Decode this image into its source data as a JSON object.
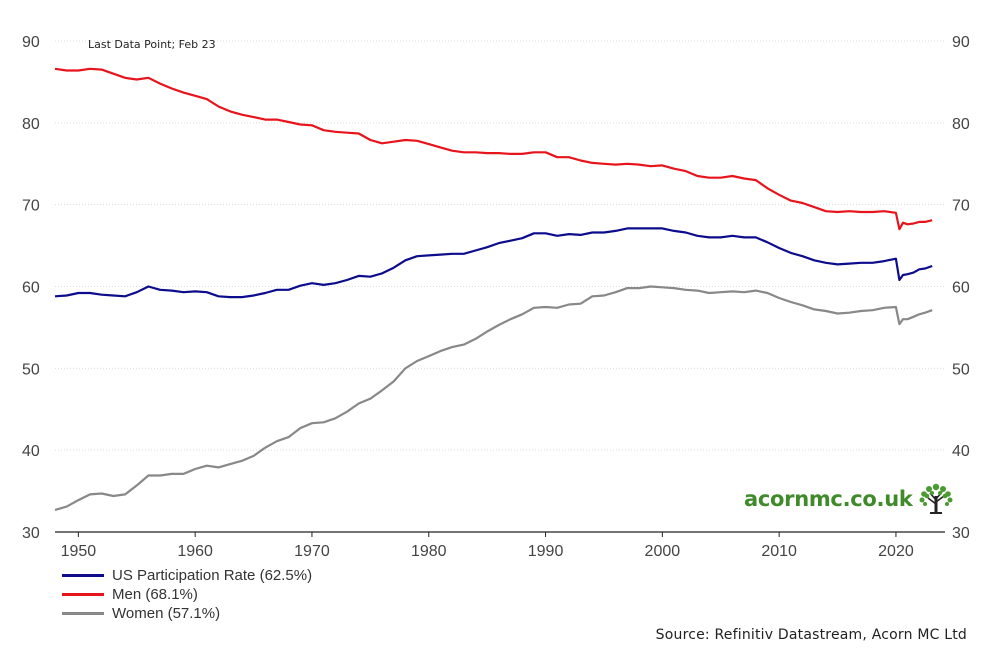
{
  "chart_data": {
    "type": "line",
    "title": "",
    "note": "Last Data Point; Feb 23",
    "xlabel": "",
    "ylabel": "",
    "xlim": [
      1948,
      2024.2
    ],
    "ylim": [
      30,
      90
    ],
    "yticks": [
      30,
      40,
      50,
      60,
      70,
      80,
      90
    ],
    "xticks": [
      1950,
      1960,
      1970,
      1980,
      1990,
      2000,
      2010,
      2020
    ],
    "grid": true,
    "legend_position": "bottom-left",
    "source": "Source: Refinitiv Datastream, Acorn MC Ltd",
    "series": [
      {
        "name": "US Participation Rate (62.5%)",
        "color": "#0c0c8c",
        "x": [
          1948,
          1949,
          1950,
          1951,
          1952,
          1953,
          1954,
          1955,
          1956,
          1957,
          1958,
          1959,
          1960,
          1961,
          1962,
          1963,
          1964,
          1965,
          1966,
          1967,
          1968,
          1969,
          1970,
          1971,
          1972,
          1973,
          1974,
          1975,
          1976,
          1977,
          1978,
          1979,
          1980,
          1981,
          1982,
          1983,
          1984,
          1985,
          1986,
          1987,
          1988,
          1989,
          1990,
          1991,
          1992,
          1993,
          1994,
          1995,
          1996,
          1997,
          1998,
          1999,
          2000,
          2001,
          2002,
          2003,
          2004,
          2005,
          2006,
          2007,
          2008,
          2009,
          2010,
          2011,
          2012,
          2013,
          2014,
          2015,
          2016,
          2017,
          2018,
          2019,
          2020,
          2020.3,
          2020.6,
          2021,
          2021.5,
          2022,
          2022.5,
          2023.1
        ],
        "values": [
          58.8,
          58.9,
          59.2,
          59.2,
          59.0,
          58.9,
          58.8,
          59.3,
          60.0,
          59.6,
          59.5,
          59.3,
          59.4,
          59.3,
          58.8,
          58.7,
          58.7,
          58.9,
          59.2,
          59.6,
          59.6,
          60.1,
          60.4,
          60.2,
          60.4,
          60.8,
          61.3,
          61.2,
          61.6,
          62.3,
          63.2,
          63.7,
          63.8,
          63.9,
          64.0,
          64.0,
          64.4,
          64.8,
          65.3,
          65.6,
          65.9,
          66.5,
          66.5,
          66.2,
          66.4,
          66.3,
          66.6,
          66.6,
          66.8,
          67.1,
          67.1,
          67.1,
          67.1,
          66.8,
          66.6,
          66.2,
          66.0,
          66.0,
          66.2,
          66.0,
          66.0,
          65.4,
          64.7,
          64.1,
          63.7,
          63.2,
          62.9,
          62.7,
          62.8,
          62.9,
          62.9,
          63.1,
          63.4,
          60.8,
          61.4,
          61.5,
          61.7,
          62.1,
          62.2,
          62.5
        ]
      },
      {
        "name": "Men (68.1%)",
        "color": "#e8141c",
        "x": [
          1948,
          1949,
          1950,
          1951,
          1952,
          1953,
          1954,
          1955,
          1956,
          1957,
          1958,
          1959,
          1960,
          1961,
          1962,
          1963,
          1964,
          1965,
          1966,
          1967,
          1968,
          1969,
          1970,
          1971,
          1972,
          1973,
          1974,
          1975,
          1976,
          1977,
          1978,
          1979,
          1980,
          1981,
          1982,
          1983,
          1984,
          1985,
          1986,
          1987,
          1988,
          1989,
          1990,
          1991,
          1992,
          1993,
          1994,
          1995,
          1996,
          1997,
          1998,
          1999,
          2000,
          2001,
          2002,
          2003,
          2004,
          2005,
          2006,
          2007,
          2008,
          2009,
          2010,
          2011,
          2012,
          2013,
          2014,
          2015,
          2016,
          2017,
          2018,
          2019,
          2020,
          2020.3,
          2020.6,
          2021,
          2021.5,
          2022,
          2022.5,
          2023.1
        ],
        "values": [
          86.6,
          86.4,
          86.4,
          86.6,
          86.5,
          86.0,
          85.5,
          85.3,
          85.5,
          84.8,
          84.2,
          83.7,
          83.3,
          82.9,
          82.0,
          81.4,
          81.0,
          80.7,
          80.4,
          80.4,
          80.1,
          79.8,
          79.7,
          79.1,
          78.9,
          78.8,
          78.7,
          77.9,
          77.5,
          77.7,
          77.9,
          77.8,
          77.4,
          77.0,
          76.6,
          76.4,
          76.4,
          76.3,
          76.3,
          76.2,
          76.2,
          76.4,
          76.4,
          75.8,
          75.8,
          75.4,
          75.1,
          75.0,
          74.9,
          75.0,
          74.9,
          74.7,
          74.8,
          74.4,
          74.1,
          73.5,
          73.3,
          73.3,
          73.5,
          73.2,
          73.0,
          72.0,
          71.2,
          70.5,
          70.2,
          69.7,
          69.2,
          69.1,
          69.2,
          69.1,
          69.1,
          69.2,
          69.0,
          67.0,
          67.8,
          67.6,
          67.7,
          67.9,
          67.9,
          68.1
        ]
      },
      {
        "name": "Women (57.1%)",
        "color": "#888888",
        "x": [
          1948,
          1949,
          1950,
          1951,
          1952,
          1953,
          1954,
          1955,
          1956,
          1957,
          1958,
          1959,
          1960,
          1961,
          1962,
          1963,
          1964,
          1965,
          1966,
          1967,
          1968,
          1969,
          1970,
          1971,
          1972,
          1973,
          1974,
          1975,
          1976,
          1977,
          1978,
          1979,
          1980,
          1981,
          1982,
          1983,
          1984,
          1985,
          1986,
          1987,
          1988,
          1989,
          1990,
          1991,
          1992,
          1993,
          1994,
          1995,
          1996,
          1997,
          1998,
          1999,
          2000,
          2001,
          2002,
          2003,
          2004,
          2005,
          2006,
          2007,
          2008,
          2009,
          2010,
          2011,
          2012,
          2013,
          2014,
          2015,
          2016,
          2017,
          2018,
          2019,
          2020,
          2020.3,
          2020.6,
          2021,
          2021.5,
          2022,
          2022.5,
          2023.1
        ],
        "values": [
          32.7,
          33.1,
          33.9,
          34.6,
          34.7,
          34.4,
          34.6,
          35.7,
          36.9,
          36.9,
          37.1,
          37.1,
          37.7,
          38.1,
          37.9,
          38.3,
          38.7,
          39.3,
          40.3,
          41.1,
          41.6,
          42.7,
          43.3,
          43.4,
          43.9,
          44.7,
          45.7,
          46.3,
          47.3,
          48.4,
          50.0,
          50.9,
          51.5,
          52.1,
          52.6,
          52.9,
          53.6,
          54.5,
          55.3,
          56.0,
          56.6,
          57.4,
          57.5,
          57.4,
          57.8,
          57.9,
          58.8,
          58.9,
          59.3,
          59.8,
          59.8,
          60.0,
          59.9,
          59.8,
          59.6,
          59.5,
          59.2,
          59.3,
          59.4,
          59.3,
          59.5,
          59.2,
          58.6,
          58.1,
          57.7,
          57.2,
          57.0,
          56.7,
          56.8,
          57.0,
          57.1,
          57.4,
          57.5,
          55.4,
          56.0,
          56.0,
          56.3,
          56.6,
          56.8,
          57.1
        ]
      }
    ]
  },
  "brand": {
    "text": "acornmc.co.uk",
    "icon": "tree-icon",
    "color": "#3f8a2a"
  }
}
